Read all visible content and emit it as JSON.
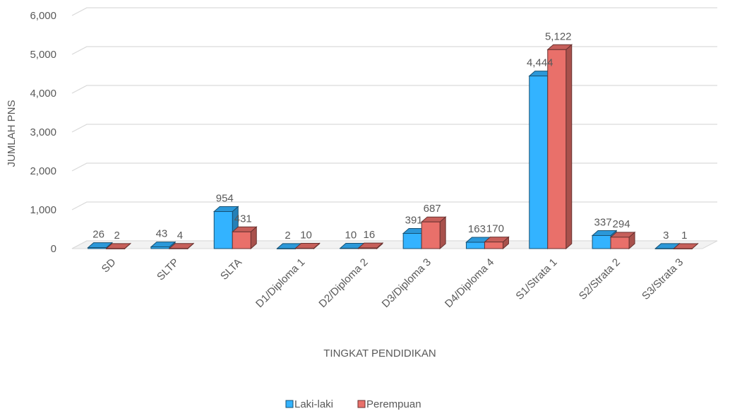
{
  "chart_data": {
    "type": "bar",
    "style": "3d-clustered-column",
    "categories": [
      "SD",
      "SLTP",
      "SLTA",
      "D1/Diploma 1",
      "D2/Diploma 2",
      "D3/Diploma 3",
      "D4/Diploma 4",
      "S1/Strata 1",
      "S2/Strata 2",
      "S3/Strata 3"
    ],
    "series": [
      {
        "name": "Laki-laki",
        "color": "#33B3FF",
        "values": [
          26,
          43,
          954,
          2,
          10,
          391,
          163,
          4444,
          337,
          3
        ],
        "labels": [
          "26",
          "43",
          "954",
          "2",
          "10",
          "391",
          "163",
          "4,444",
          "337",
          "3"
        ]
      },
      {
        "name": "Perempuan",
        "color": "#E9706A",
        "values": [
          2,
          4,
          431,
          10,
          16,
          687,
          170,
          5122,
          294,
          1
        ],
        "labels": [
          "2",
          "4",
          "431",
          "10",
          "16",
          "687",
          "170",
          "5,122",
          "294",
          "1"
        ]
      }
    ],
    "xlabel": "TINGKAT PENDIDIKAN",
    "ylabel": "JUMLAH PNS",
    "ylim": [
      0,
      6000
    ],
    "yticks": [
      0,
      1000,
      2000,
      3000,
      4000,
      5000,
      6000
    ],
    "ytick_labels": [
      "0",
      "1,000",
      "2,000",
      "3,000",
      "4,000",
      "5,000",
      "6,000"
    ],
    "grid": true,
    "legend_position": "bottom-center"
  }
}
